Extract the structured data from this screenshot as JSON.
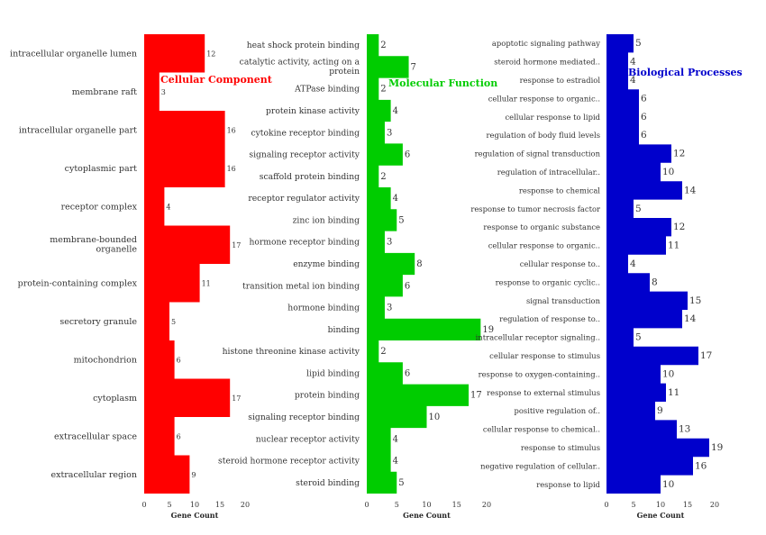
{
  "chart_data": [
    {
      "type": "bar",
      "orientation": "horizontal",
      "title": "Cellular Component",
      "color": "#ff0000",
      "xlabel": "Gene Count",
      "xlim": [
        0,
        20
      ],
      "xticks": [
        0,
        5,
        10,
        15,
        20
      ],
      "categories": [
        "intracellular organelle lumen",
        "membrane raft",
        "intracellular organelle part",
        "cytoplasmic part",
        "receptor complex",
        "membrane-bounded organelle",
        "protein-containing complex",
        "secretory granule",
        "mitochondrion",
        "cytoplasm",
        "extracellular space",
        "extracellular region"
      ],
      "values": [
        12,
        3,
        16,
        16,
        4,
        17,
        11,
        5,
        6,
        17,
        6,
        9
      ]
    },
    {
      "type": "bar",
      "orientation": "horizontal",
      "title": "Molecular Function",
      "color": "#00cc00",
      "xlabel": "Gene Count",
      "xlim": [
        0,
        20
      ],
      "xticks": [
        0,
        5,
        10,
        15,
        20
      ],
      "categories": [
        "heat shock protein binding",
        "catalytic activity, acting on a protein",
        "ATPase binding",
        "protein kinase activity",
        "cytokine receptor binding",
        "signaling receptor activity",
        "scaffold protein binding",
        "receptor regulator activity",
        "zinc ion binding",
        "hormone receptor binding",
        "enzyme binding",
        "transition metal ion binding",
        "hormone binding",
        "binding",
        "histone threonine kinase activity",
        "lipid binding",
        "protein binding",
        "signaling receptor binding",
        "nuclear receptor activity",
        "steroid hormone receptor activity",
        "steroid binding"
      ],
      "values": [
        2,
        7,
        2,
        4,
        3,
        6,
        2,
        4,
        5,
        3,
        8,
        6,
        3,
        19,
        2,
        6,
        17,
        10,
        4,
        4,
        5
      ]
    },
    {
      "type": "bar",
      "orientation": "horizontal",
      "title": "Biological Processes",
      "color": "#0000cc",
      "xlabel": "Gene Count",
      "xlim": [
        0,
        20
      ],
      "xticks": [
        0,
        5,
        10,
        15,
        20
      ],
      "categories": [
        "apoptotic signaling pathway",
        "steroid hormone mediated..",
        "response to estradiol",
        "cellular response to organic..",
        "cellular response to lipid",
        "regulation of body fluid levels",
        "regulation of signal transduction",
        "regulation of intracellular..",
        "response to chemical",
        "response to tumor necrosis factor",
        "response to organic substance",
        "cellular response to organic..",
        "cellular response to..",
        "response to organic cyclic..",
        "signal transduction",
        "regulation of response to..",
        "intracellular receptor signaling..",
        "cellular response to stimulus",
        "response to oxygen-containing..",
        "response to external stimulus",
        "positive regulation of..",
        "cellular response to chemical..",
        "response to stimulus",
        "negative regulation of cellular..",
        "response to lipid"
      ],
      "values": [
        5,
        4,
        4,
        6,
        6,
        6,
        12,
        10,
        14,
        5,
        12,
        11,
        4,
        8,
        15,
        14,
        5,
        17,
        10,
        11,
        9,
        13,
        19,
        16,
        10
      ]
    }
  ]
}
